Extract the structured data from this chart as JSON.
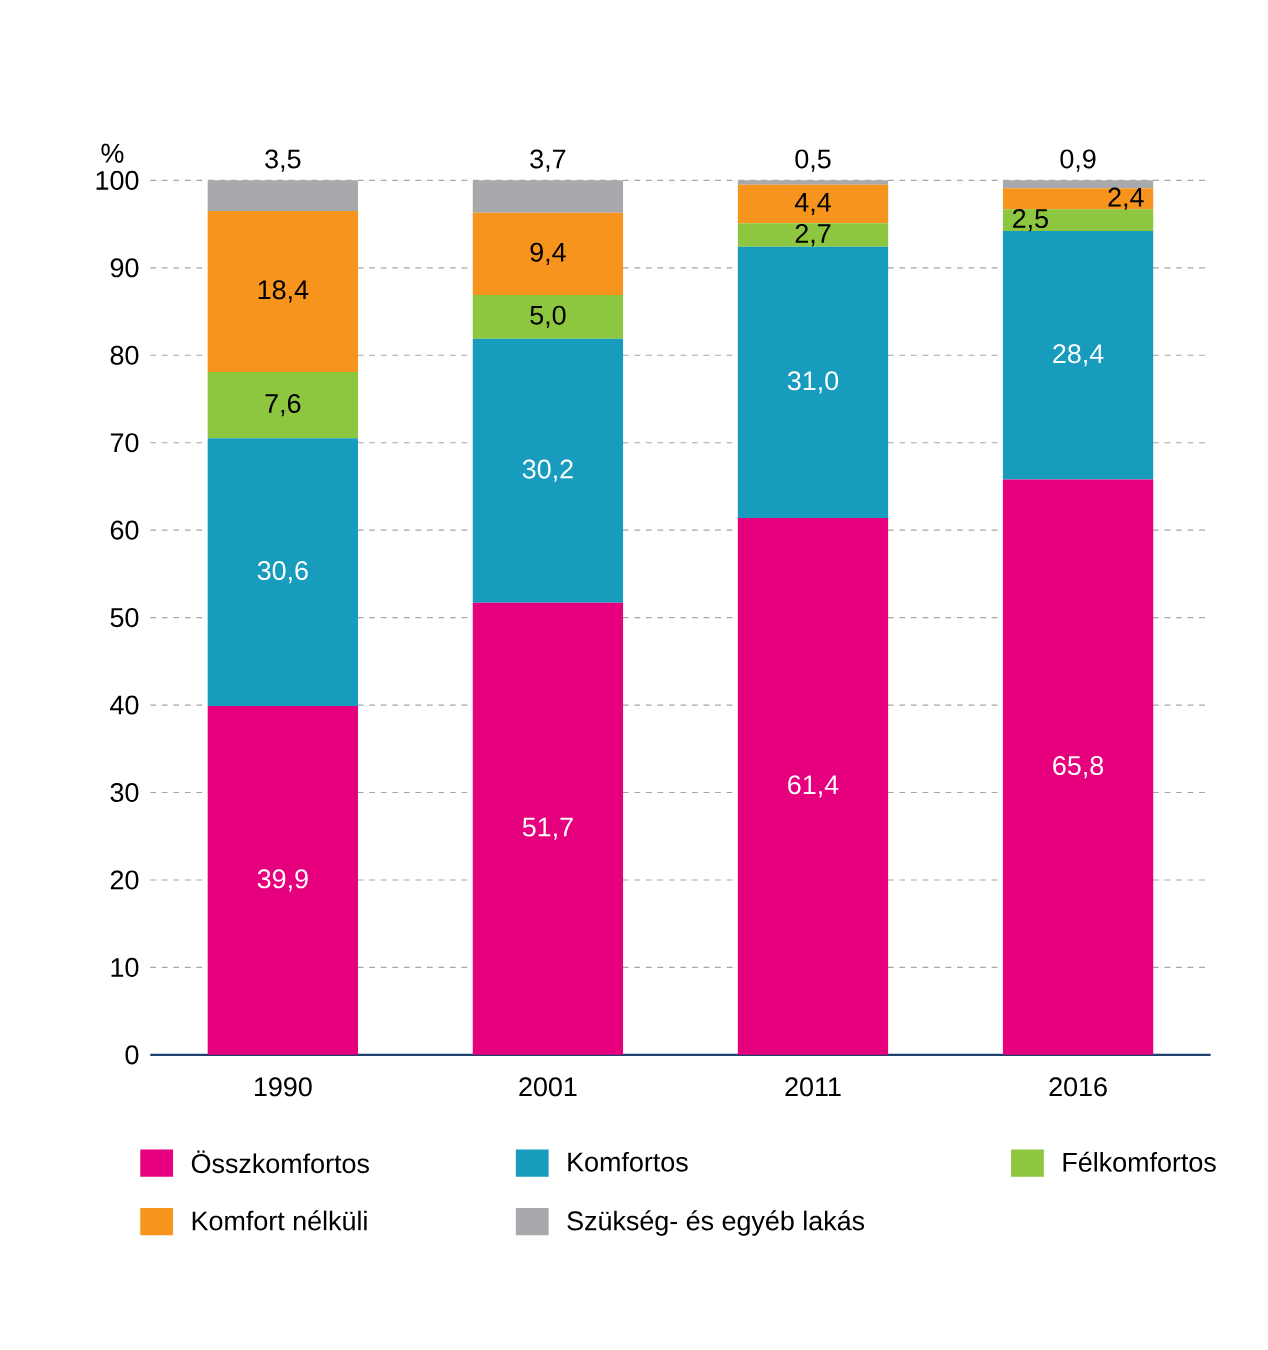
{
  "chart_data": {
    "type": "bar",
    "stacked": true,
    "ylabel": "%",
    "categories": [
      "1990",
      "2001",
      "2011",
      "2016"
    ],
    "series": [
      {
        "name": "Összkomfortos",
        "color": "#e6007e",
        "values": [
          39.9,
          51.7,
          61.4,
          65.8
        ],
        "value_labels": [
          "39,9",
          "51,7",
          "61,4",
          "65,8"
        ]
      },
      {
        "name": "Komfortos",
        "color": "#179cbd",
        "values": [
          30.6,
          30.2,
          31.0,
          28.4
        ],
        "value_labels": [
          "30,6",
          "30,2",
          "31,0",
          "28,4"
        ]
      },
      {
        "name": "Félkomfortos",
        "color": "#8dc63f",
        "values": [
          7.6,
          5.0,
          2.7,
          2.5
        ],
        "value_labels": [
          "7,6",
          "5,0",
          "2,7",
          "2,5"
        ]
      },
      {
        "name": "Komfort nélküli",
        "color": "#f7941d",
        "values": [
          18.4,
          9.4,
          4.4,
          2.4
        ],
        "value_labels": [
          "18,4",
          "9,4",
          "4,4",
          "2,4"
        ]
      },
      {
        "name": "Szükség- és egyéb lakás",
        "color": "#a7a9ac",
        "values": [
          3.5,
          3.7,
          0.5,
          0.9
        ],
        "value_labels": [
          "3,5",
          "3,7",
          "0,5",
          "0,9"
        ]
      }
    ],
    "ylim": [
      0,
      100
    ],
    "yticks": [
      0,
      10,
      20,
      30,
      40,
      50,
      60,
      70,
      80,
      90,
      100
    ],
    "grid": "y",
    "legend": "bottom"
  }
}
